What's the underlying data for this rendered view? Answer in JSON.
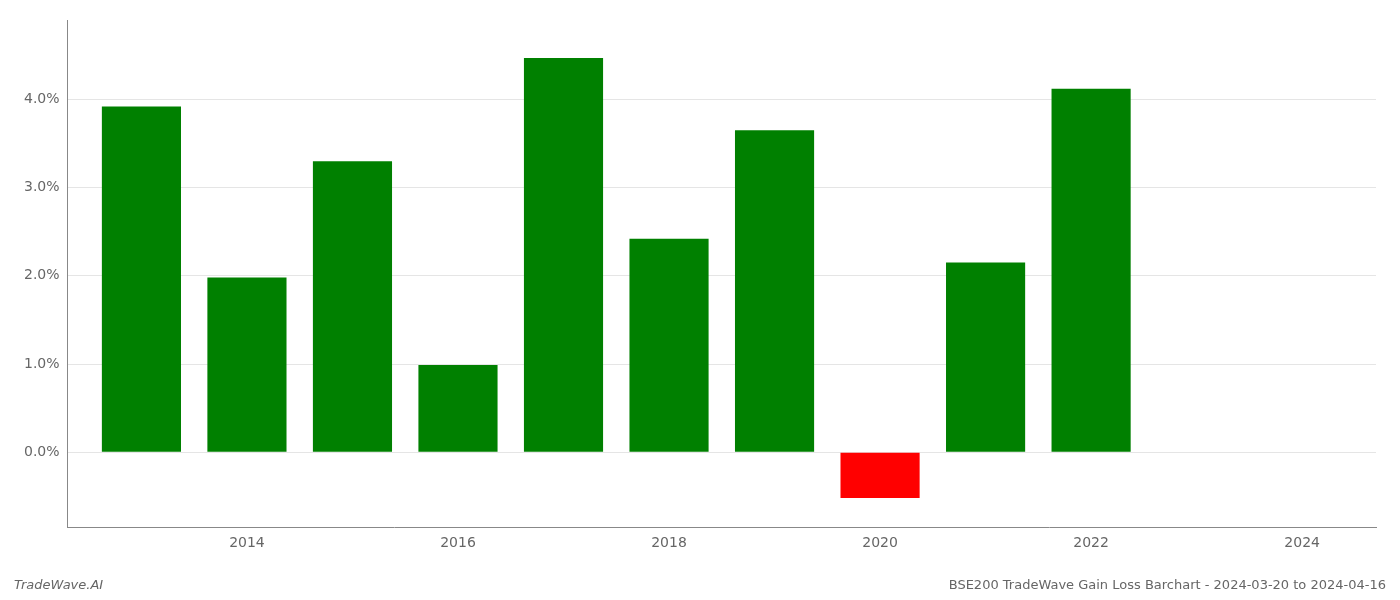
{
  "chart_data": {
    "type": "bar",
    "title": "BSE200 TradeWave Gain Loss Barchart - 2024-03-20 to 2024-04-16",
    "annotations": [
      "TradeWave.AI"
    ],
    "x": [
      2013,
      2014,
      2015,
      2016,
      2017,
      2018,
      2019,
      2020,
      2021,
      2022,
      2023
    ],
    "values": [
      0.0392,
      0.0198,
      0.033,
      0.0099,
      0.0447,
      0.0242,
      0.0365,
      -0.0052,
      0.0215,
      0.0412,
      0.0
    ],
    "colors": [
      "#008000",
      "#008000",
      "#008000",
      "#008000",
      "#008000",
      "#008000",
      "#008000",
      "#ff0000",
      "#008000",
      "#008000",
      "#008000"
    ],
    "xlim": [
      2012.3,
      2024.7
    ],
    "xticks": [
      2014,
      2016,
      2018,
      2020,
      2022,
      2024
    ],
    "ylim": [
      -0.0085,
      0.049
    ],
    "yticks": [
      {
        "value": 0.0,
        "label": "0.0%"
      },
      {
        "value": 0.01,
        "label": "1.0%"
      },
      {
        "value": 0.02,
        "label": "2.0%"
      },
      {
        "value": 0.03,
        "label": "3.0%"
      },
      {
        "value": 0.04,
        "label": "4.0%"
      }
    ],
    "grid": true
  }
}
